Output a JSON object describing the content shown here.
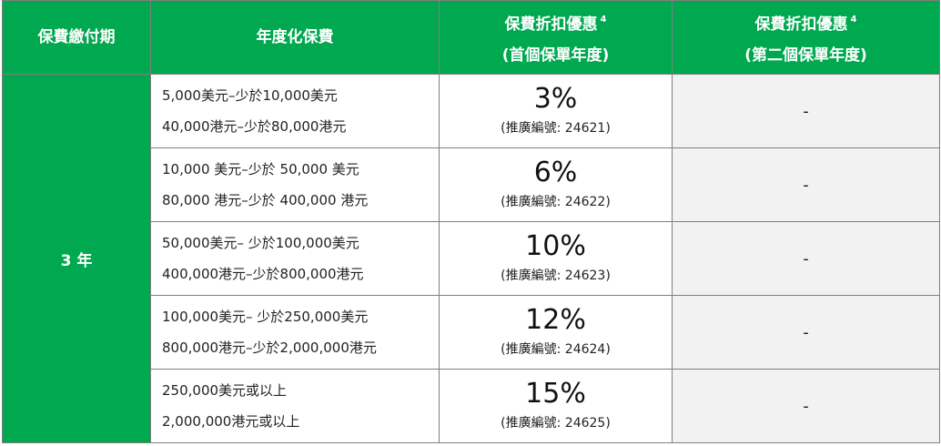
{
  "header": {
    "col_term": "保費繳付期",
    "col_premium": "年度化保費",
    "col_first_line1": "保費折扣優惠",
    "col_first_sup": "4",
    "col_first_line2": "(首個保單年度)",
    "col_second_line1": "保費折扣優惠",
    "col_second_sup": "4",
    "col_second_line2": "(第二個保單年度)"
  },
  "term": "3 年",
  "rows": [
    {
      "usd": "5,000美元–少於10,000美元",
      "hkd": "40,000港元–少於80,000港元",
      "discount": "3%",
      "code": "(推廣編號: 24621)",
      "second": "-"
    },
    {
      "usd": "10,000 美元–少於 50,000 美元",
      "hkd": "80,000 港元–少於 400,000 港元",
      "discount": "6%",
      "code": "(推廣編號: 24622)",
      "second": "-"
    },
    {
      "usd": "50,000美元– 少於100,000美元",
      "hkd": "400,000港元–少於800,000港元",
      "discount": "10%",
      "code": "(推廣編號: 24623)",
      "second": "-"
    },
    {
      "usd": "100,000美元– 少於250,000美元",
      "hkd": "800,000港元–少於2,000,000港元",
      "discount": "12%",
      "code": "(推廣編號: 24624)",
      "second": "-"
    },
    {
      "usd": "250,000美元或以上",
      "hkd": "2,000,000港元或以上",
      "discount": "15%",
      "code": "(推廣編號: 24625)",
      "second": "-"
    }
  ]
}
